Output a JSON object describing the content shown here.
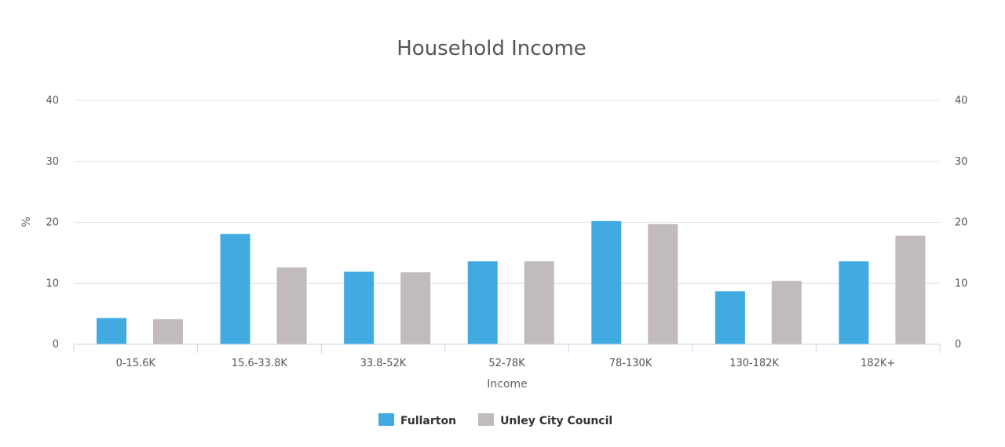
{
  "chart_data": {
    "type": "bar",
    "title": "Household Income",
    "xlabel": "Income",
    "ylabel": "%",
    "ylim": [
      0,
      40
    ],
    "yticks": [
      0,
      10,
      20,
      30,
      40
    ],
    "grid": true,
    "legend_position": "bottom-center",
    "categories": [
      "0-15.6K",
      "15.6-33.8K",
      "33.8-52K",
      "52-78K",
      "78-130K",
      "130-182K",
      "182K+"
    ],
    "series": [
      {
        "name": "Fullarton",
        "color": "#41abe1",
        "values": [
          4.3,
          18.1,
          11.9,
          13.6,
          20.2,
          8.7,
          13.6
        ]
      },
      {
        "name": "Unley City Council",
        "color": "#c1bbbb",
        "values": [
          4.1,
          12.6,
          11.8,
          13.6,
          19.7,
          10.4,
          17.8
        ]
      }
    ]
  }
}
